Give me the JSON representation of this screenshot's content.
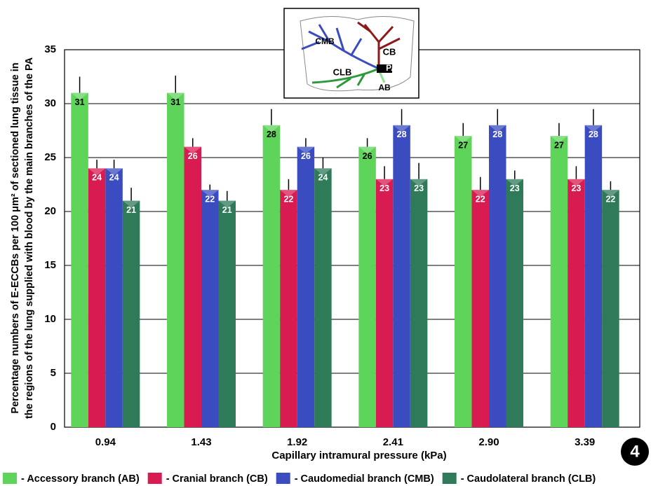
{
  "chart_data": {
    "type": "bar",
    "ylabel": [
      "Percentage numbers of E-ECCBs per 100 μm² of sectioned lung tissue in",
      "the regions of the lung supplied with blood by the main branches of the PA"
    ],
    "xlabel": "Capillary intramural pressure (kPa)",
    "categories": [
      "0.94",
      "1.43",
      "1.92",
      "2.41",
      "2.90",
      "3.39"
    ],
    "series": [
      {
        "name": "- Accessory branch (AB)",
        "color": "#5fd45a",
        "values": [
          31,
          31,
          28,
          26,
          27,
          27
        ],
        "errors": [
          1.5,
          1.6,
          1.5,
          0.8,
          1.2,
          1.2
        ]
      },
      {
        "name": "- Cranial branch (CB)",
        "color": "#d81b50",
        "values": [
          24,
          26,
          22,
          23,
          22,
          23
        ],
        "errors": [
          0.8,
          0.8,
          1.0,
          1.2,
          1.2,
          1.2
        ]
      },
      {
        "name": "- Caudomedial branch (CMB)",
        "color": "#3b4cc0",
        "values": [
          24,
          22,
          26,
          28,
          28,
          28
        ],
        "errors": [
          0.8,
          0.5,
          0.8,
          1.5,
          1.5,
          1.5
        ]
      },
      {
        "name": "- Caudolateral branch (CLB)",
        "color": "#2f7a58",
        "values": [
          21,
          21,
          24,
          23,
          23,
          22
        ],
        "errors": [
          1.2,
          0.9,
          1.0,
          1.5,
          0.8,
          0.8
        ]
      }
    ],
    "ylim": [
      0,
      35
    ],
    "yticks": [
      0,
      5,
      10,
      15,
      20,
      25,
      30,
      35
    ],
    "grid": true,
    "inset_labels": [
      "CMB",
      "CB",
      "CLB",
      "PA",
      "AB"
    ],
    "figure_number": "4"
  }
}
